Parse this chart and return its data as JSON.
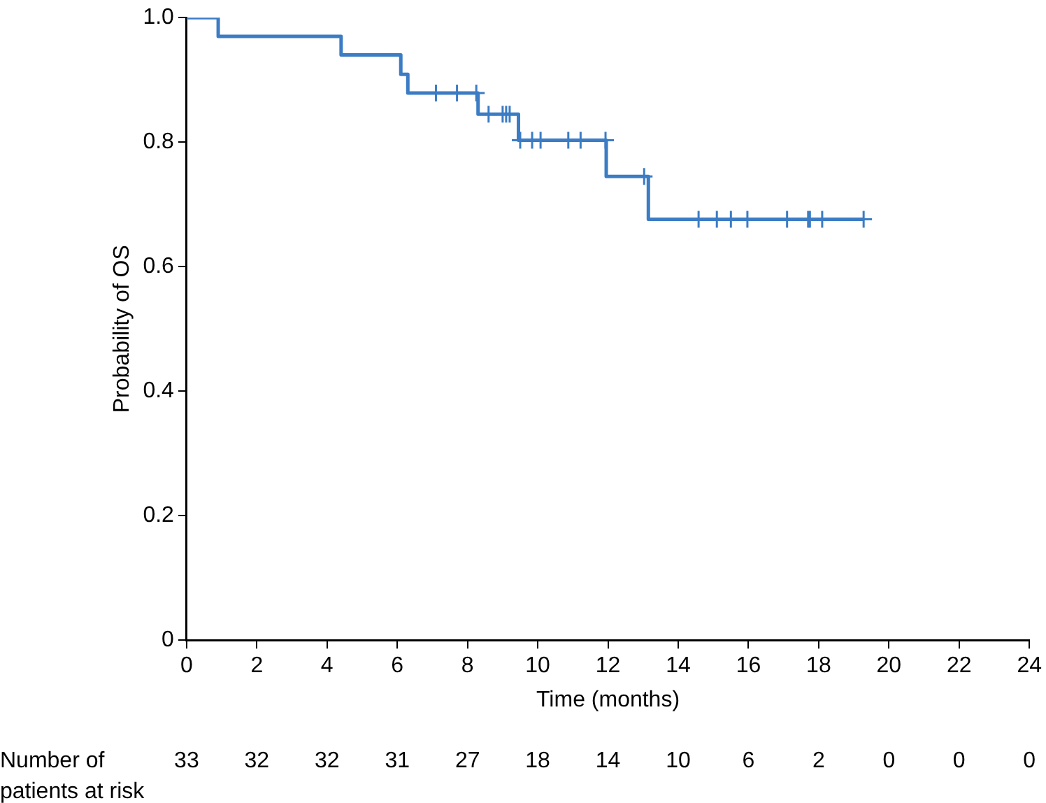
{
  "chart_data": {
    "type": "step",
    "xlabel": "Time (months)",
    "ylabel": "Probability of OS",
    "xlim": [
      0,
      24
    ],
    "xticks": [
      0,
      2,
      4,
      6,
      8,
      10,
      12,
      14,
      16,
      18,
      20,
      22,
      24
    ],
    "ylim": [
      0,
      1
    ],
    "yticks": [
      0,
      0.2,
      0.4,
      0.6,
      0.8,
      {
        "value": 1,
        "label": "1.0"
      }
    ],
    "series": [
      {
        "color": "#3b7cc4",
        "marker": "none",
        "x": [
          0,
          0.9,
          4.4,
          6.1,
          6.3,
          8.3,
          9.45,
          11.95,
          13.15,
          19.3
        ],
        "values": [
          1,
          0.97,
          0.94,
          0.909,
          0.879,
          0.845,
          0.803,
          0.745,
          0.676,
          0.676
        ]
      },
      {
        "type": "scatter",
        "color": "#3b7cc4",
        "marker": "cross",
        "x": [
          7.1,
          7.7,
          8.25,
          8.6,
          9.0,
          9.1,
          9.2,
          9.5,
          9.84,
          10.08,
          10.87,
          11.22,
          11.93,
          13.03,
          14.58,
          15.1,
          15.5,
          15.97,
          17.1,
          17.7,
          17.75,
          18.1,
          19.28
        ],
        "values": [
          0.879,
          0.879,
          0.879,
          0.845,
          0.845,
          0.845,
          0.845,
          0.803,
          0.803,
          0.803,
          0.803,
          0.803,
          0.803,
          0.745,
          0.676,
          0.676,
          0.676,
          0.676,
          0.676,
          0.676,
          0.676,
          0.676,
          0.676
        ]
      }
    ],
    "annotations": [
      "Number of\npatients at risk",
      "33",
      "32",
      "32",
      "31",
      "27",
      "18",
      "14",
      "10",
      "6",
      "2",
      "0",
      "0",
      "0"
    ]
  }
}
